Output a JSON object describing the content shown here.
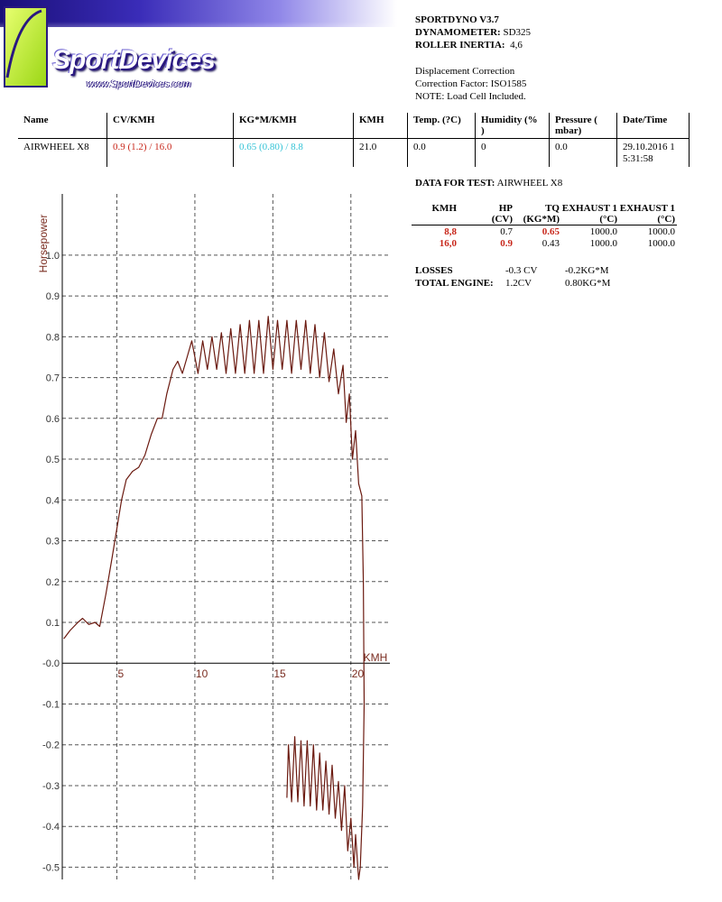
{
  "header": {
    "software_label": "SPORTDYNO V3.7",
    "dynamometer_label": "DYNAMOMETER:",
    "dynamometer_value": "SD325",
    "inertia_label": "ROLLER INERTIA:",
    "inertia_value": "4,6",
    "note1": "Displacement Correction",
    "note2": "Correction Factor: ISO1585",
    "note3": "NOTE: Load Cell Included."
  },
  "logo": {
    "text": "SportDevices",
    "url": "www.SportDevices.com"
  },
  "summary_table": {
    "columns": [
      "Name",
      "CV/KMH",
      "KG*M/KMH",
      "KMH",
      "Temp. (?C)",
      "Humidity (%\n)",
      "Pressure (\nmbar)",
      "Date/Time"
    ],
    "row": [
      "AIRWHEEL X8",
      "0.9 (1.2) / 16.0",
      "0.65 (0.80) / 8.8",
      "21.0",
      "0.0",
      "0",
      "0.0",
      "29.10.2016 1\n5:31:58"
    ]
  },
  "test": {
    "label": "DATA FOR TEST:",
    "name": "AIRWHEEL X8",
    "columns_top": [
      "KMH",
      "HP",
      "TQ",
      "EXHAUST 1",
      "EXHAUST 1"
    ],
    "columns_bottom": [
      "",
      "(CV)",
      "(KG*M)",
      "(°C)",
      "(°C)"
    ],
    "rows": [
      [
        "8,8",
        "0.7",
        "0.65",
        "1000.0",
        "1000.0"
      ],
      [
        "16,0",
        "0.9",
        "0.43",
        "1000.0",
        "1000.0"
      ]
    ],
    "losses_label": "LOSSES",
    "losses_cv": "-0.3 CV",
    "losses_kgm": "-0.2KG*M",
    "total_label": "TOTAL ENGINE:",
    "total_cv": "1.2CV",
    "total_kgm": "0.80KG*M"
  },
  "chart_data": {
    "type": "line",
    "title": "",
    "xlabel": "KMH",
    "ylabel": "Horsepower",
    "xlim": [
      1.5,
      22.5
    ],
    "ylim": [
      -0.53,
      1.15
    ],
    "x_ticks": [
      5,
      10,
      15,
      20
    ],
    "y_ticks": [
      1.0,
      0.9,
      0.8,
      0.7,
      0.6,
      0.5,
      0.4,
      0.3,
      0.2,
      0.1,
      0.0,
      -0.1,
      -0.2,
      -0.3,
      -0.4,
      -0.5
    ],
    "y_tick_labels": [
      "1.0",
      "0.9",
      "0.8",
      "0.7",
      "0.6",
      "0.5",
      "0.4",
      "0.3",
      "0.2",
      "0.1",
      "-0.0",
      "-0.1",
      "-0.2",
      "-0.3",
      "-0.4",
      "-0.5"
    ],
    "grid": true,
    "line_color": "#6b1a10",
    "series": [
      {
        "name": "",
        "points": [
          [
            1.6,
            0.06
          ],
          [
            2.0,
            0.08
          ],
          [
            2.5,
            0.1
          ],
          [
            2.8,
            0.11
          ],
          [
            3.2,
            0.095
          ],
          [
            3.6,
            0.1
          ],
          [
            3.9,
            0.09
          ],
          [
            4.3,
            0.17
          ],
          [
            4.7,
            0.26
          ],
          [
            5.0,
            0.33
          ],
          [
            5.3,
            0.4
          ],
          [
            5.6,
            0.45
          ],
          [
            6.0,
            0.47
          ],
          [
            6.4,
            0.48
          ],
          [
            6.8,
            0.51
          ],
          [
            7.2,
            0.56
          ],
          [
            7.6,
            0.6
          ],
          [
            7.9,
            0.6
          ],
          [
            8.2,
            0.66
          ],
          [
            8.6,
            0.72
          ],
          [
            8.9,
            0.74
          ],
          [
            9.2,
            0.71
          ],
          [
            9.5,
            0.75
          ],
          [
            9.8,
            0.79
          ],
          [
            10.2,
            0.71
          ],
          [
            10.5,
            0.79
          ],
          [
            10.8,
            0.72
          ],
          [
            11.1,
            0.8
          ],
          [
            11.4,
            0.72
          ],
          [
            11.7,
            0.81
          ],
          [
            12.0,
            0.71
          ],
          [
            12.3,
            0.82
          ],
          [
            12.6,
            0.71
          ],
          [
            12.9,
            0.83
          ],
          [
            13.2,
            0.71
          ],
          [
            13.5,
            0.84
          ],
          [
            13.8,
            0.71
          ],
          [
            14.1,
            0.84
          ],
          [
            14.4,
            0.71
          ],
          [
            14.7,
            0.85
          ],
          [
            15.0,
            0.72
          ],
          [
            15.3,
            0.84
          ],
          [
            15.6,
            0.72
          ],
          [
            15.9,
            0.84
          ],
          [
            16.2,
            0.71
          ],
          [
            16.5,
            0.84
          ],
          [
            16.8,
            0.72
          ],
          [
            17.1,
            0.84
          ],
          [
            17.4,
            0.71
          ],
          [
            17.7,
            0.83
          ],
          [
            18.0,
            0.7
          ],
          [
            18.3,
            0.81
          ],
          [
            18.6,
            0.69
          ],
          [
            18.9,
            0.77
          ],
          [
            19.2,
            0.66
          ],
          [
            19.5,
            0.73
          ],
          [
            19.7,
            0.59
          ],
          [
            19.9,
            0.66
          ],
          [
            20.1,
            0.5
          ],
          [
            20.3,
            0.57
          ],
          [
            20.5,
            0.44
          ],
          [
            20.7,
            0.41
          ],
          [
            20.8,
            0.2
          ],
          [
            20.85,
            -0.1
          ],
          [
            20.75,
            -0.35
          ],
          [
            20.6,
            -0.5
          ],
          [
            20.5,
            -0.53
          ],
          [
            20.3,
            -0.42
          ],
          [
            20.2,
            -0.5
          ],
          [
            20.0,
            -0.38
          ],
          [
            19.8,
            -0.46
          ],
          [
            19.6,
            -0.3
          ],
          [
            19.4,
            -0.41
          ],
          [
            19.2,
            -0.29
          ],
          [
            19.0,
            -0.38
          ],
          [
            18.8,
            -0.25
          ],
          [
            18.6,
            -0.37
          ],
          [
            18.4,
            -0.24
          ],
          [
            18.2,
            -0.36
          ],
          [
            18.0,
            -0.22
          ],
          [
            17.8,
            -0.36
          ],
          [
            17.6,
            -0.2
          ],
          [
            17.4,
            -0.35
          ],
          [
            17.2,
            -0.19
          ],
          [
            17.0,
            -0.35
          ],
          [
            16.8,
            -0.19
          ],
          [
            16.6,
            -0.34
          ],
          [
            16.4,
            -0.18
          ],
          [
            16.2,
            -0.34
          ],
          [
            16.0,
            -0.2
          ],
          [
            15.9,
            -0.33
          ]
        ]
      }
    ]
  }
}
